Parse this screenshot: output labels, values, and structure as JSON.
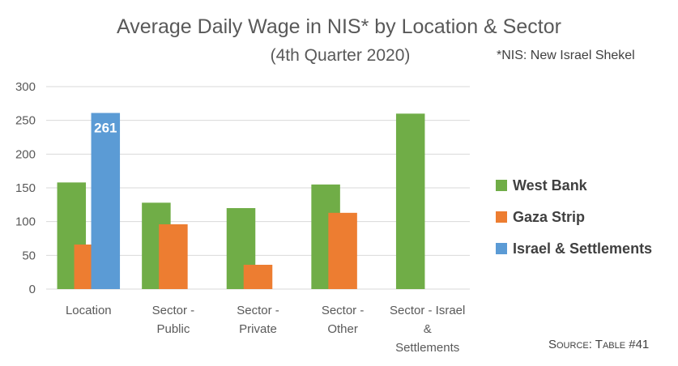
{
  "chart_data": {
    "type": "bar",
    "title": "Average Daily Wage in NIS* by Location & Sector",
    "subtitle": "(4th Quarter 2020)",
    "footnote": "*NIS: New Israel Shekel",
    "source": "Source: Table #41",
    "categories": [
      [
        "Location"
      ],
      [
        "Sector -",
        "Public"
      ],
      [
        "Sector -",
        "Private"
      ],
      [
        "Sector -",
        "Other"
      ],
      [
        "Sector - Israel",
        "&",
        "Settlements"
      ]
    ],
    "series": [
      {
        "name": "West Bank",
        "color": "#70ad47",
        "values": [
          158,
          128,
          120,
          155,
          260
        ]
      },
      {
        "name": "Gaza Strip",
        "color": "#ed7d31",
        "values": [
          66,
          96,
          36,
          113,
          null
        ]
      },
      {
        "name": "Israel & Settlements",
        "color": "#5b9bd5",
        "values": [
          261,
          null,
          null,
          null,
          null
        ]
      }
    ],
    "data_labels": [
      {
        "series": 2,
        "category": 0,
        "text": "261"
      }
    ],
    "ylim": [
      0,
      300
    ],
    "yticks": [
      0,
      50,
      100,
      150,
      200,
      250,
      300
    ],
    "grid": true,
    "legend_position": "right"
  }
}
